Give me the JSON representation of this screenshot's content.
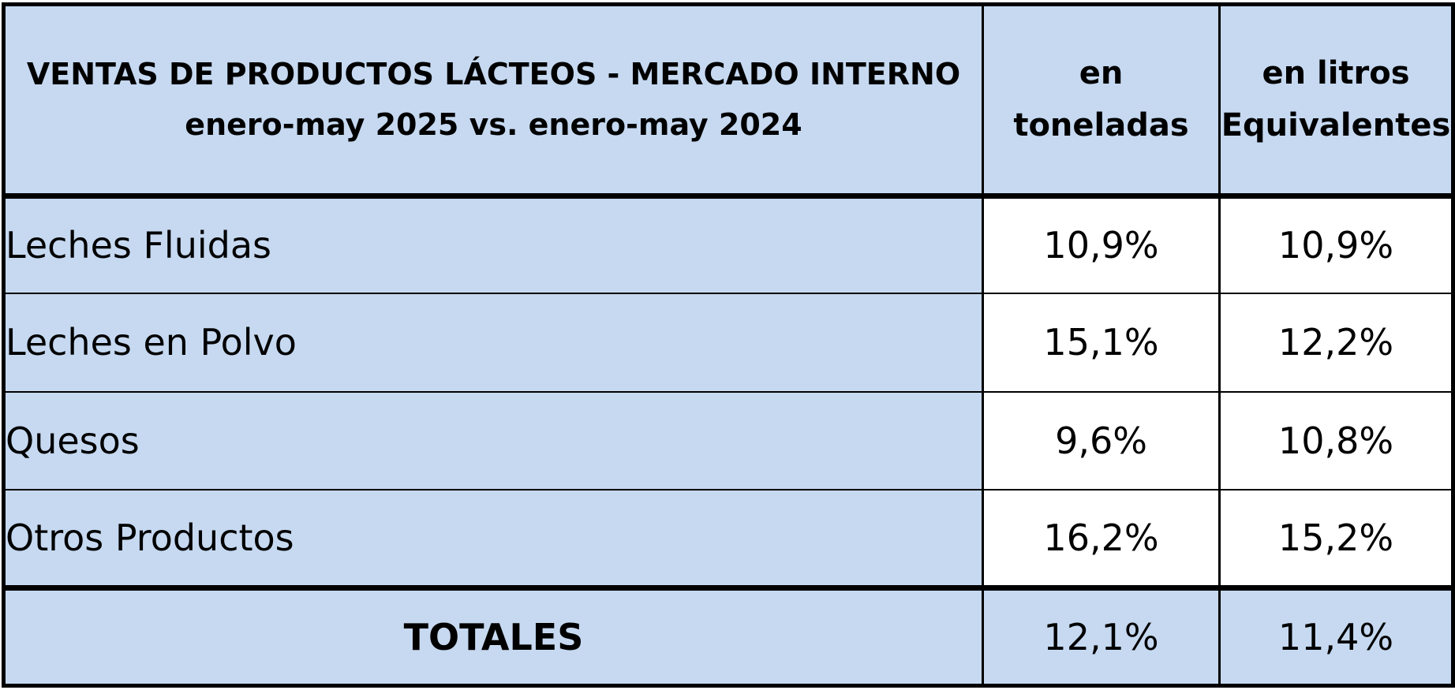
{
  "chart_data": {
    "type": "table",
    "title_lines": [
      "VENTAS DE PRODUCTOS LÁCTEOS - MERCADO INTERNO",
      "enero-may 2025 vs. enero-may 2024"
    ],
    "columns": [
      {
        "lines": [
          "en",
          "toneladas"
        ]
      },
      {
        "lines": [
          "en litros",
          "Equivalentes"
        ]
      }
    ],
    "rows": [
      {
        "label": "Leches Fluidas",
        "values": [
          "10,9%",
          "10,9%"
        ]
      },
      {
        "label": "Leches en Polvo",
        "values": [
          "15,1%",
          "12,2%"
        ]
      },
      {
        "label": "Quesos",
        "values": [
          "9,6%",
          "10,8%"
        ]
      },
      {
        "label": "Otros Productos",
        "values": [
          "16,2%",
          "15,2%"
        ]
      }
    ],
    "total": {
      "label": "TOTALES",
      "values": [
        "12,1%",
        "11,4%"
      ]
    }
  },
  "colors": {
    "header_fill": "#c6d9f1",
    "label_fill": "#c6d9f1",
    "value_fill": "#ffffff",
    "grid": "#000000"
  }
}
